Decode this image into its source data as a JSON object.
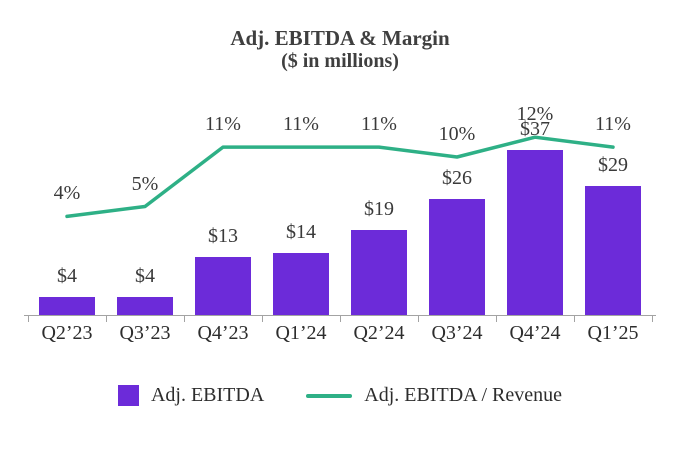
{
  "chart_data": {
    "type": "bar",
    "title": "Adj. EBITDA & Margin",
    "subtitle": "($ in millions)",
    "categories": [
      "Q2’23",
      "Q3’23",
      "Q4’23",
      "Q1’24",
      "Q2’24",
      "Q3’24",
      "Q4’24",
      "Q1’25"
    ],
    "series": [
      {
        "name": "Adj. EBITDA",
        "type": "bar",
        "values": [
          4,
          4,
          13,
          14,
          19,
          26,
          37,
          29
        ],
        "labels": [
          "$4",
          "$4",
          "$13",
          "$14",
          "$19",
          "$26",
          "$37",
          "$29"
        ],
        "unit": "$ millions",
        "color": "#6C2BD9"
      },
      {
        "name": "Adj. EBITDA / Revenue",
        "type": "line",
        "values": [
          4,
          5,
          11,
          11,
          11,
          10,
          12,
          11
        ],
        "labels": [
          "4%",
          "5%",
          "11%",
          "11%",
          "11%",
          "10%",
          "12%",
          "11%"
        ],
        "unit": "%",
        "color": "#2EB086"
      }
    ],
    "legend_position": "bottom",
    "grid": "off",
    "axis_color": "#a3a3a3"
  }
}
